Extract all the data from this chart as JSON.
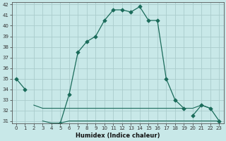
{
  "xlabel": "Humidex (Indice chaleur)",
  "background_color": "#c8e8e8",
  "grid_color": "#aacccc",
  "line_color": "#1a6b5a",
  "x_values": [
    0,
    1,
    2,
    3,
    4,
    5,
    6,
    7,
    8,
    9,
    10,
    11,
    12,
    13,
    14,
    15,
    16,
    17,
    18,
    19,
    20,
    21,
    22,
    23
  ],
  "line_main": [
    35,
    34,
    null,
    null,
    null,
    null,
    null,
    null,
    null,
    null,
    null,
    null,
    null,
    null,
    null,
    null,
    null,
    null,
    null,
    null,
    null,
    null,
    null,
    null
  ],
  "line_main2": [
    null,
    null,
    null,
    null,
    null,
    30.8,
    33.5,
    37.5,
    38.5,
    39.0,
    40.5,
    41.5,
    41.5,
    41.3,
    41.8,
    40.5,
    40.5,
    35.0,
    33.0,
    32.2,
    null,
    null,
    null,
    null
  ],
  "line_flat_upper": [
    null,
    null,
    32.5,
    32.2,
    32.2,
    32.2,
    32.2,
    32.2,
    32.2,
    32.2,
    32.2,
    32.2,
    32.2,
    32.2,
    32.2,
    32.2,
    32.2,
    32.2,
    32.2,
    32.2,
    32.2,
    32.5,
    32.2,
    null
  ],
  "line_flat_lower": [
    null,
    null,
    null,
    31.0,
    30.8,
    30.8,
    31.0,
    31.0,
    31.0,
    31.0,
    31.0,
    31.0,
    31.0,
    31.0,
    31.0,
    31.0,
    31.0,
    31.0,
    31.0,
    31.0,
    31.0,
    31.0,
    31.0,
    31.0
  ],
  "line_right": [
    null,
    null,
    null,
    null,
    null,
    null,
    null,
    null,
    null,
    null,
    null,
    null,
    null,
    null,
    null,
    null,
    null,
    null,
    null,
    null,
    31.5,
    32.5,
    32.2,
    31.0
  ],
  "ylim_min": 31,
  "ylim_max": 42,
  "yticks": [
    31,
    32,
    33,
    34,
    35,
    36,
    37,
    38,
    39,
    40,
    41,
    42
  ],
  "xticks": [
    0,
    1,
    2,
    3,
    4,
    5,
    6,
    7,
    8,
    9,
    10,
    11,
    12,
    13,
    14,
    15,
    16,
    17,
    18,
    19,
    20,
    21,
    22,
    23
  ]
}
